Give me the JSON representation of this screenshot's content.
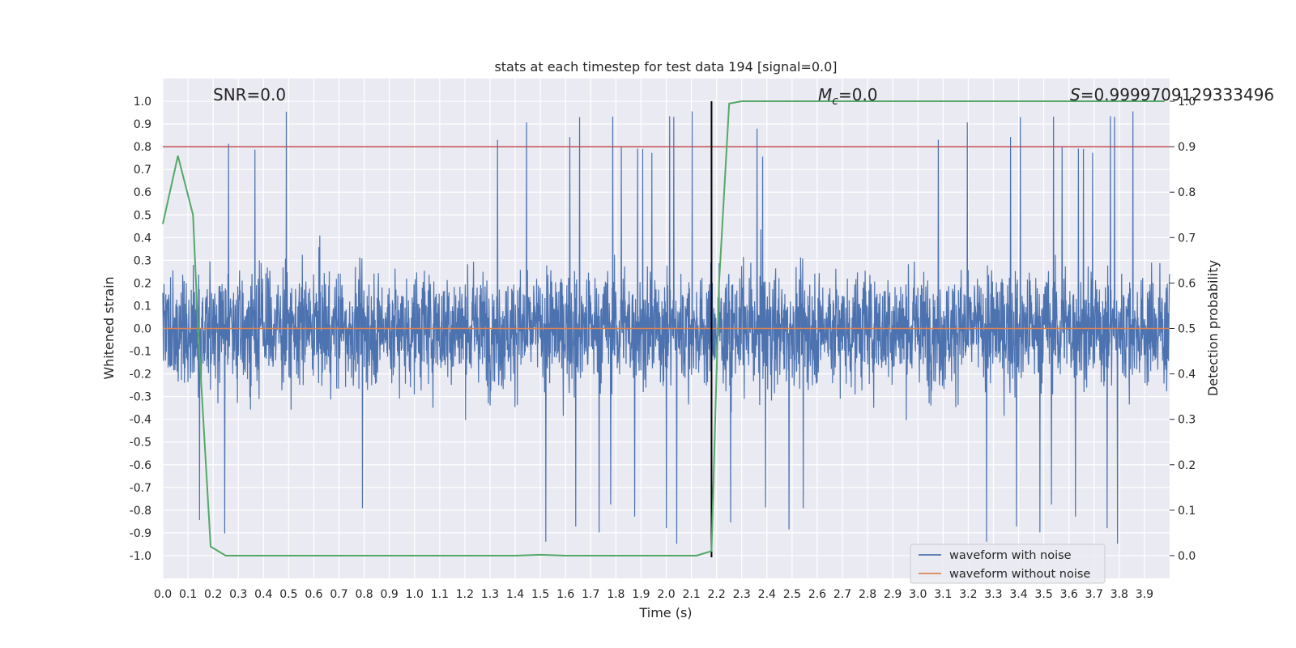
{
  "chart_data": {
    "type": "line",
    "title": "stats at each timestep for test data 194 [signal=0.0]",
    "xlabel": "Time (s)",
    "ylabel": "Whitened strain",
    "y2label": "Detection probability",
    "xlim": [
      0.0,
      4.0
    ],
    "ylim": [
      -1.1,
      1.1
    ],
    "y2lim": [
      -0.05,
      1.05
    ],
    "x_ticks": [
      "0.0",
      "0.1",
      "0.2",
      "0.3",
      "0.4",
      "0.5",
      "0.6",
      "0.7",
      "0.8",
      "0.9",
      "1.0",
      "1.1",
      "1.2",
      "1.3",
      "1.4",
      "1.5",
      "1.6",
      "1.7",
      "1.8",
      "1.9",
      "2.0",
      "2.1",
      "2.2",
      "2.3",
      "2.4",
      "2.5",
      "2.6",
      "2.7",
      "2.8",
      "2.9",
      "3.0",
      "3.1",
      "3.2",
      "3.3",
      "3.4",
      "3.5",
      "3.6",
      "3.7",
      "3.8",
      "3.9"
    ],
    "y_ticks": [
      "1.0",
      "0.9",
      "0.8",
      "0.7",
      "0.6",
      "0.5",
      "0.4",
      "0.3",
      "0.2",
      "0.1",
      "0.0",
      "-0.1",
      "-0.2",
      "-0.3",
      "-0.4",
      "-0.5",
      "-0.6",
      "-0.7",
      "-0.8",
      "-0.9",
      "-1.0"
    ],
    "y2_ticks": [
      "1.0",
      "0.9",
      "0.8",
      "0.7",
      "0.6",
      "0.5",
      "0.4",
      "0.3",
      "0.2",
      "0.1",
      "0.0"
    ],
    "grid": true,
    "legend_position": "lower-right",
    "annotations": {
      "snr": "SNR=0.0",
      "mc_symbol": "M",
      "mc_sub": "c",
      "mc_value": "=0.0",
      "s_symbol": "S",
      "s_value": "=0.9999709129333496"
    },
    "series": [
      {
        "name": "waveform with noise",
        "color": "#4c72b0",
        "kind": "noise",
        "amplitude_range": [
          -1.0,
          1.0
        ]
      },
      {
        "name": "waveform without noise",
        "color": "#dd8452",
        "kind": "flat",
        "value": 0.0
      },
      {
        "color": "#55a868",
        "axis": "y2",
        "x": [
          0.0,
          0.06,
          0.12,
          0.14,
          0.19,
          0.25,
          0.4,
          0.8,
          1.2,
          1.4,
          1.5,
          1.6,
          1.8,
          2.0,
          2.12,
          2.18,
          2.21,
          2.25,
          2.3,
          2.6,
          3.0,
          3.5,
          3.98
        ],
        "y": [
          0.73,
          0.88,
          0.75,
          0.5,
          0.02,
          0.0,
          0.0,
          0.0,
          0.0,
          0.0,
          0.002,
          0.0,
          0.0,
          0.0,
          0.0,
          0.01,
          0.6,
          0.995,
          1.0,
          1.0,
          1.0,
          1.0,
          1.0
        ]
      }
    ],
    "threshold_y2": 0.9,
    "threshold_color": "#c44e52",
    "vline_x": 2.18,
    "vline_color": "#000000"
  }
}
